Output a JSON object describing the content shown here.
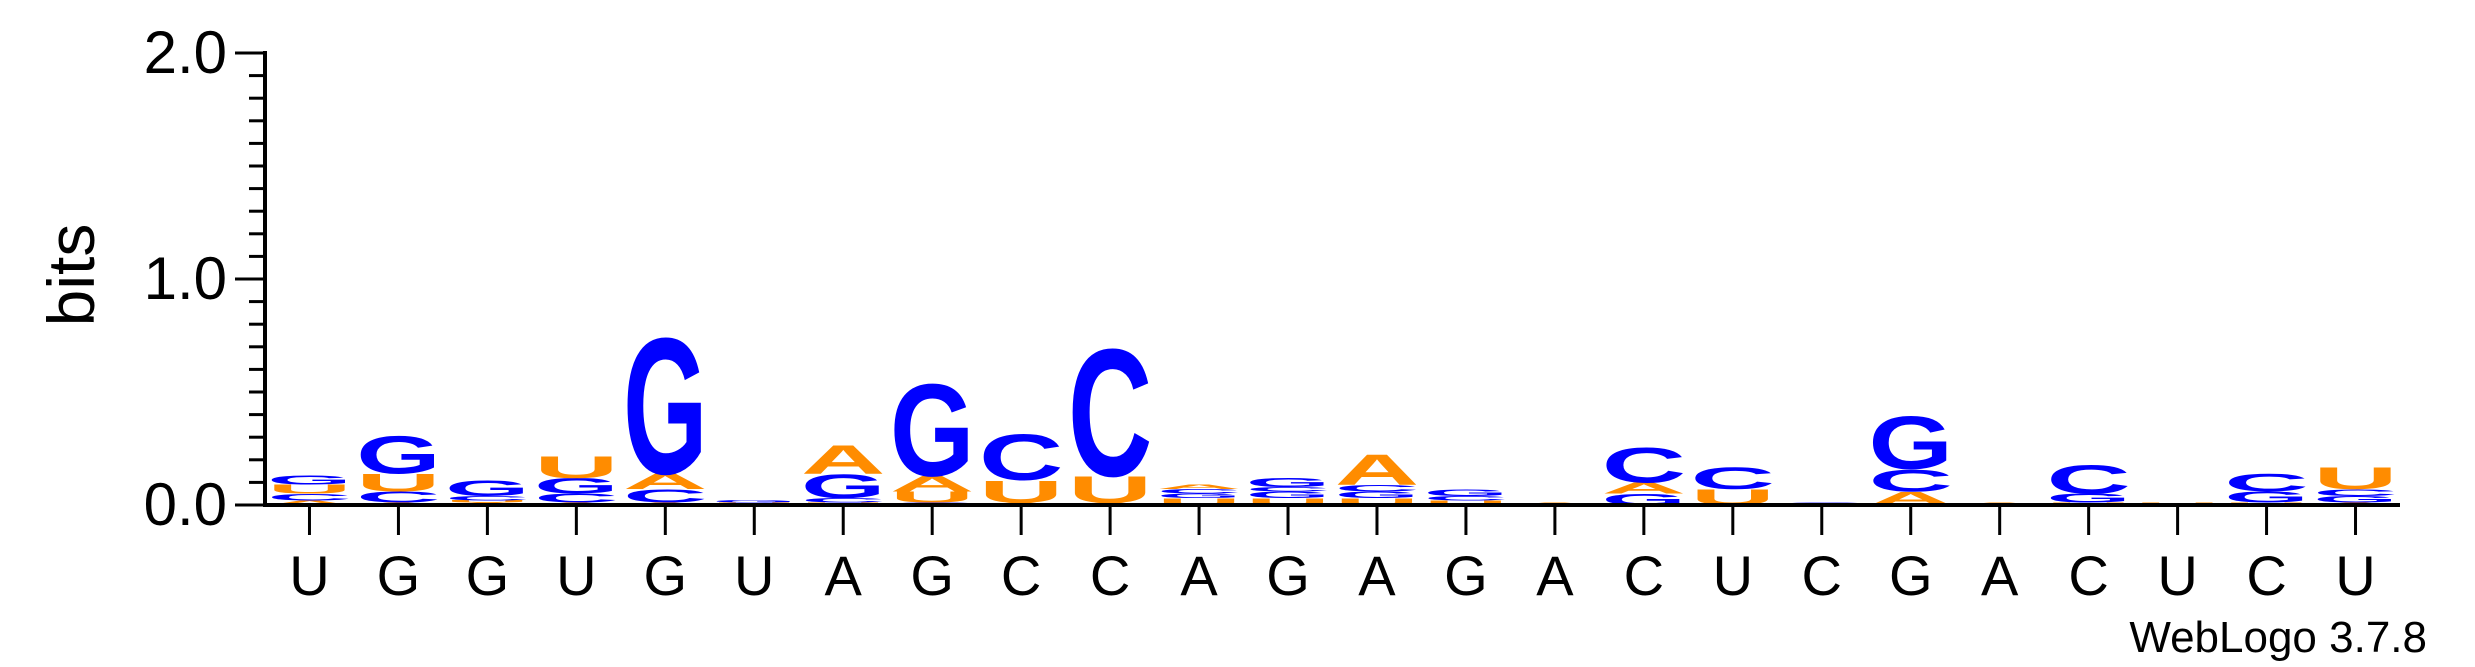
{
  "chart_data": {
    "type": "sequence-logo",
    "ylabel": "bits",
    "ylim": [
      0,
      2
    ],
    "yticks": [
      "0.0",
      "1.0",
      "2.0"
    ],
    "x_labels": [
      "U",
      "G",
      "G",
      "U",
      "G",
      "U",
      "A",
      "G",
      "C",
      "C",
      "A",
      "G",
      "A",
      "G",
      "A",
      "C",
      "U",
      "C",
      "G",
      "A",
      "C",
      "U",
      "C",
      "U"
    ],
    "colors": {
      "A": "#FF8C00",
      "U": "#FF8C00",
      "G": "#0000FF",
      "C": "#0000FF"
    },
    "columns": [
      [
        {
          "b": "A",
          "h": 0.02
        },
        {
          "b": "C",
          "h": 0.03
        },
        {
          "b": "U",
          "h": 0.04
        },
        {
          "b": "G",
          "h": 0.04
        }
      ],
      [
        {
          "b": "A",
          "h": 0.01
        },
        {
          "b": "C",
          "h": 0.05
        },
        {
          "b": "U",
          "h": 0.08
        },
        {
          "b": "G",
          "h": 0.17
        }
      ],
      [
        {
          "b": "A",
          "h": 0.01
        },
        {
          "b": "U",
          "h": 0.01
        },
        {
          "b": "C",
          "h": 0.02
        },
        {
          "b": "G",
          "h": 0.07
        }
      ],
      [
        {
          "b": "A",
          "h": 0.01
        },
        {
          "b": "C",
          "h": 0.04
        },
        {
          "b": "G",
          "h": 0.07
        },
        {
          "b": "U",
          "h": 0.1
        }
      ],
      [
        {
          "b": "A",
          "h": 0.01
        },
        {
          "b": "C",
          "h": 0.06
        },
        {
          "b": "A",
          "h": 0.07
        },
        {
          "b": "G",
          "h": 0.62
        }
      ],
      [
        {
          "b": "U",
          "h": 0.01
        },
        {
          "b": "G",
          "h": 0.01
        }
      ],
      [
        {
          "b": "U",
          "h": 0.01
        },
        {
          "b": "C",
          "h": 0.02
        },
        {
          "b": "G",
          "h": 0.11
        },
        {
          "b": "A",
          "h": 0.13
        }
      ],
      [
        {
          "b": "C",
          "h": 0.01
        },
        {
          "b": "U",
          "h": 0.05
        },
        {
          "b": "A",
          "h": 0.07
        },
        {
          "b": "G",
          "h": 0.42
        }
      ],
      [
        {
          "b": "A",
          "h": 0.01
        },
        {
          "b": "U",
          "h": 0.1
        },
        {
          "b": "C",
          "h": 0.21
        }
      ],
      [
        {
          "b": "A",
          "h": 0.01
        },
        {
          "b": "U",
          "h": 0.12
        },
        {
          "b": "C",
          "h": 0.58
        }
      ],
      [
        {
          "b": "U",
          "h": 0.03
        },
        {
          "b": "G",
          "h": 0.02
        },
        {
          "b": "C",
          "h": 0.02
        },
        {
          "b": "A",
          "h": 0.02
        }
      ],
      [
        {
          "b": "U",
          "h": 0.03
        },
        {
          "b": "G",
          "h": 0.03
        },
        {
          "b": "C",
          "h": 0.02
        },
        {
          "b": "G",
          "h": 0.04
        }
      ],
      [
        {
          "b": "U",
          "h": 0.03
        },
        {
          "b": "G",
          "h": 0.03
        },
        {
          "b": "C",
          "h": 0.03
        },
        {
          "b": "A",
          "h": 0.14
        }
      ],
      [
        {
          "b": "U",
          "h": 0.02
        },
        {
          "b": "C",
          "h": 0.02
        },
        {
          "b": "G",
          "h": 0.03
        }
      ],
      [
        {
          "b": "A",
          "h": 0.01
        }
      ],
      [
        {
          "b": "G",
          "h": 0.05
        },
        {
          "b": "A",
          "h": 0.05
        },
        {
          "b": "C",
          "h": 0.16
        }
      ],
      [
        {
          "b": "U",
          "h": 0.07
        },
        {
          "b": "C",
          "h": 0.1
        }
      ],
      [
        {
          "b": "C",
          "h": 0.01
        }
      ],
      [
        {
          "b": "A",
          "h": 0.06
        },
        {
          "b": "C",
          "h": 0.1
        },
        {
          "b": "G",
          "h": 0.24
        }
      ],
      [
        {
          "b": "A",
          "h": 0.01
        }
      ],
      [
        {
          "b": "U",
          "h": 0.01
        },
        {
          "b": "G",
          "h": 0.04
        },
        {
          "b": "C",
          "h": 0.13
        }
      ],
      [
        {
          "b": "U",
          "h": 0.01
        }
      ],
      [
        {
          "b": "U",
          "h": 0.01
        },
        {
          "b": "G",
          "h": 0.05
        },
        {
          "b": "C",
          "h": 0.08
        }
      ],
      [
        {
          "b": "A",
          "h": 0.01
        },
        {
          "b": "G",
          "h": 0.03
        },
        {
          "b": "C",
          "h": 0.03
        },
        {
          "b": "U",
          "h": 0.1
        }
      ]
    ]
  },
  "credit": "WebLogo 3.7.8"
}
